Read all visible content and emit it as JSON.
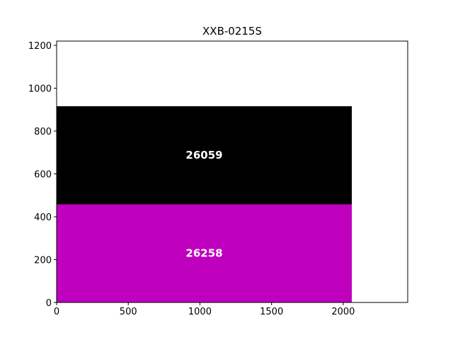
{
  "chart_data": {
    "type": "bar",
    "orientation": "stacked-area-blocks",
    "title": "XXB-0215S",
    "xlabel": "",
    "ylabel": "",
    "xlim": [
      0,
      2450
    ],
    "ylim": [
      0,
      1220
    ],
    "x_ticks": [
      "0",
      "500",
      "1000",
      "1500",
      "2000"
    ],
    "y_ticks": [
      "0",
      "200",
      "400",
      "600",
      "800",
      "1000",
      "1200"
    ],
    "grid": false,
    "blocks": [
      {
        "label": "26258",
        "x0": 0,
        "x1": 2060,
        "y0": 0,
        "y1": 458,
        "color": "#bf00bf"
      },
      {
        "label": "26059",
        "x0": 0,
        "x1": 2060,
        "y0": 458,
        "y1": 916,
        "color": "#000000"
      }
    ]
  }
}
